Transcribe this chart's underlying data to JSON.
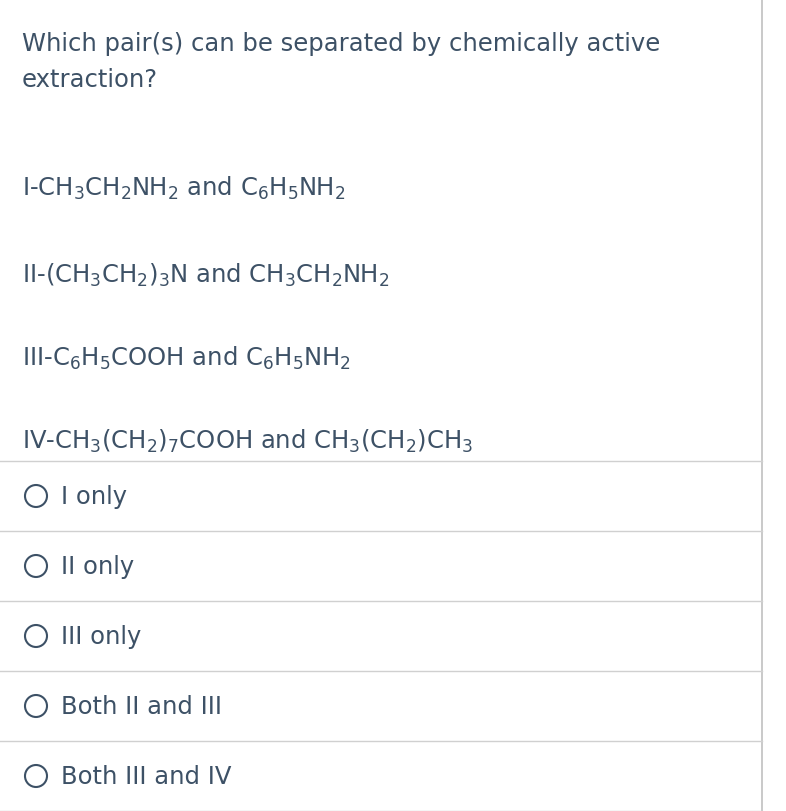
{
  "background_color": "#ffffff",
  "text_color": "#3d5166",
  "question_line1": "Which pair(s) can be separated by chemically active",
  "question_line2": "extraction?",
  "pairs": [
    "I-CH$_3$CH$_2$NH$_2$ and C$_6$H$_5$NH$_2$",
    "II-(CH$_3$CH$_2$)$_3$N and CH$_3$CH$_2$NH$_2$",
    "III-C$_6$H$_5$COOH and C$_6$H$_5$NH$_2$",
    "IV-CH$_3$(CH$_2$)$_7$COOH and CH$_3$(CH$_2$)CH$_3$"
  ],
  "options": [
    "I only",
    "II only",
    "III only",
    "Both II and III",
    "Both III and IV"
  ],
  "figsize": [
    7.86,
    8.12
  ],
  "dpi": 100,
  "question_fontsize": 17.5,
  "pair_fontsize": 17.5,
  "option_fontsize": 17.5,
  "line_color": "#d0d0d0",
  "circle_color": "#3d5166",
  "right_border_color": "#c0c0c0"
}
